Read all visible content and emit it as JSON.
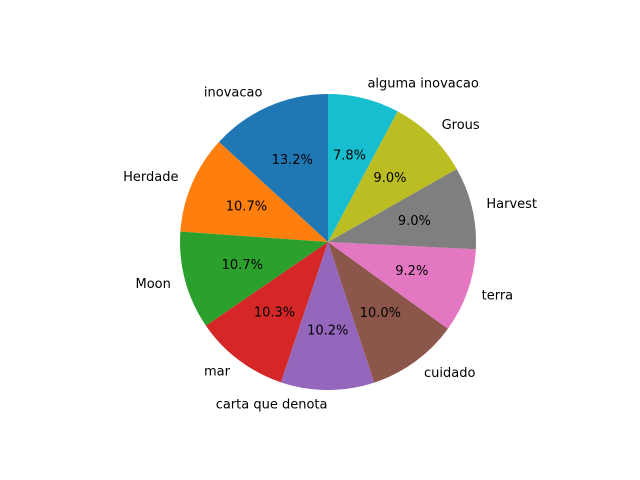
{
  "chart_data": {
    "type": "pie",
    "categories": [
      "inovacao",
      "Herdade",
      "Moon",
      "mar",
      "carta que denota",
      "cuidado",
      "terra",
      "Harvest",
      "Grous",
      "alguma inovacao"
    ],
    "values": [
      13.2,
      10.7,
      10.7,
      10.3,
      10.2,
      10.0,
      9.2,
      9.0,
      9.0,
      7.8
    ],
    "percent_labels": [
      "13.2%",
      "10.7%",
      "10.7%",
      "10.3%",
      "10.2%",
      "10.0%",
      "9.2%",
      "9.0%",
      "9.0%",
      "7.8%"
    ],
    "colors": [
      "#1f77b4",
      "#ff7f0e",
      "#2ca02c",
      "#d62728",
      "#9467bd",
      "#8c564b",
      "#e377c2",
      "#7f7f7f",
      "#bcbd22",
      "#17becf"
    ],
    "start_angle_deg": 90,
    "direction": "counterclockwise",
    "title": ""
  }
}
